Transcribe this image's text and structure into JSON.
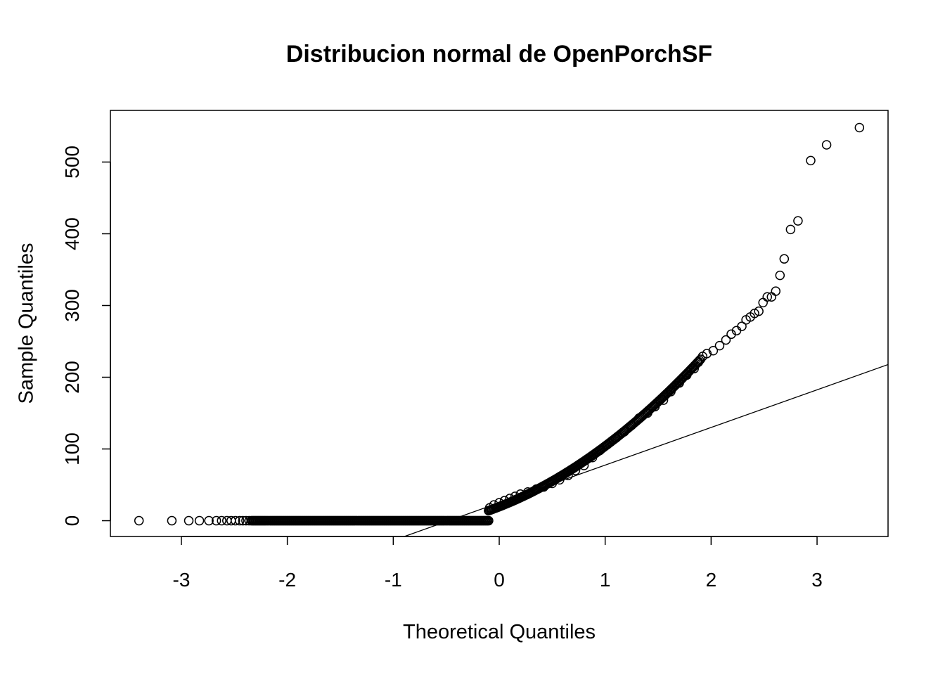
{
  "chart_data": {
    "type": "scatter",
    "title": "Distribucion normal de OpenPorchSF",
    "xlabel": "Theoretical Quantiles",
    "ylabel": "Sample Quantiles",
    "xlim": [
      -3.67,
      3.67
    ],
    "ylim": [
      -22,
      572
    ],
    "grid": false,
    "x_ticks": [
      "-3",
      "-2",
      "-1",
      "0",
      "1",
      "2",
      "3"
    ],
    "y_ticks": [
      "0",
      "100",
      "200",
      "300",
      "400",
      "500"
    ],
    "reference_line": {
      "intercept": 25,
      "slope": 52.5
    },
    "series": [
      {
        "marker": "open-circle",
        "color": "#000000",
        "points": [
          [
            -3.4,
            0
          ],
          [
            -3.09,
            0
          ],
          [
            -2.93,
            0
          ],
          [
            -2.83,
            0
          ],
          [
            -2.74,
            0
          ],
          [
            -2.67,
            0
          ],
          [
            -2.62,
            0
          ],
          [
            -2.57,
            0
          ],
          [
            -2.53,
            0
          ],
          [
            -2.49,
            0
          ],
          [
            -2.45,
            0
          ],
          [
            -2.42,
            0
          ],
          [
            -2.39,
            0
          ],
          [
            -2.36,
            0
          ],
          [
            -0.1,
            14
          ],
          [
            -0.09,
            18
          ],
          [
            -0.05,
            22
          ],
          [
            0.0,
            25
          ],
          [
            0.05,
            28
          ],
          [
            0.1,
            31
          ],
          [
            0.15,
            34
          ],
          [
            0.2,
            37
          ],
          [
            0.27,
            40
          ],
          [
            0.35,
            44
          ],
          [
            0.42,
            47
          ],
          [
            0.5,
            52
          ],
          [
            0.57,
            57
          ],
          [
            0.65,
            63
          ],
          [
            0.72,
            70
          ],
          [
            0.8,
            77
          ],
          [
            0.88,
            88
          ],
          [
            0.95,
            98
          ],
          [
            1.02,
            106
          ],
          [
            1.1,
            115
          ],
          [
            1.18,
            124
          ],
          [
            1.25,
            133
          ],
          [
            1.32,
            143
          ],
          [
            1.4,
            150
          ],
          [
            1.47,
            159
          ],
          [
            1.55,
            168
          ],
          [
            1.62,
            180
          ],
          [
            1.7,
            192
          ],
          [
            1.77,
            203
          ],
          [
            1.84,
            212
          ],
          [
            1.88,
            221
          ],
          [
            1.92,
            229
          ],
          [
            1.96,
            233
          ],
          [
            2.02,
            237
          ],
          [
            2.08,
            244
          ],
          [
            2.14,
            252
          ],
          [
            2.19,
            260
          ],
          [
            2.24,
            265
          ],
          [
            2.29,
            271
          ],
          [
            2.33,
            280
          ],
          [
            2.37,
            284
          ],
          [
            2.41,
            289
          ],
          [
            2.45,
            292
          ],
          [
            2.49,
            304
          ],
          [
            2.53,
            312
          ],
          [
            2.57,
            312
          ],
          [
            2.61,
            320
          ],
          [
            2.65,
            342
          ],
          [
            2.69,
            365
          ],
          [
            2.75,
            406
          ],
          [
            2.82,
            418
          ],
          [
            2.94,
            502
          ],
          [
            3.09,
            524
          ],
          [
            3.4,
            548
          ]
        ],
        "dense_runs": [
          {
            "x_start": -2.34,
            "x_end": -0.1,
            "y": 0
          },
          {
            "x_start": -0.1,
            "x_end": 1.9,
            "y_start": 14,
            "y_end": 225
          }
        ]
      }
    ]
  }
}
